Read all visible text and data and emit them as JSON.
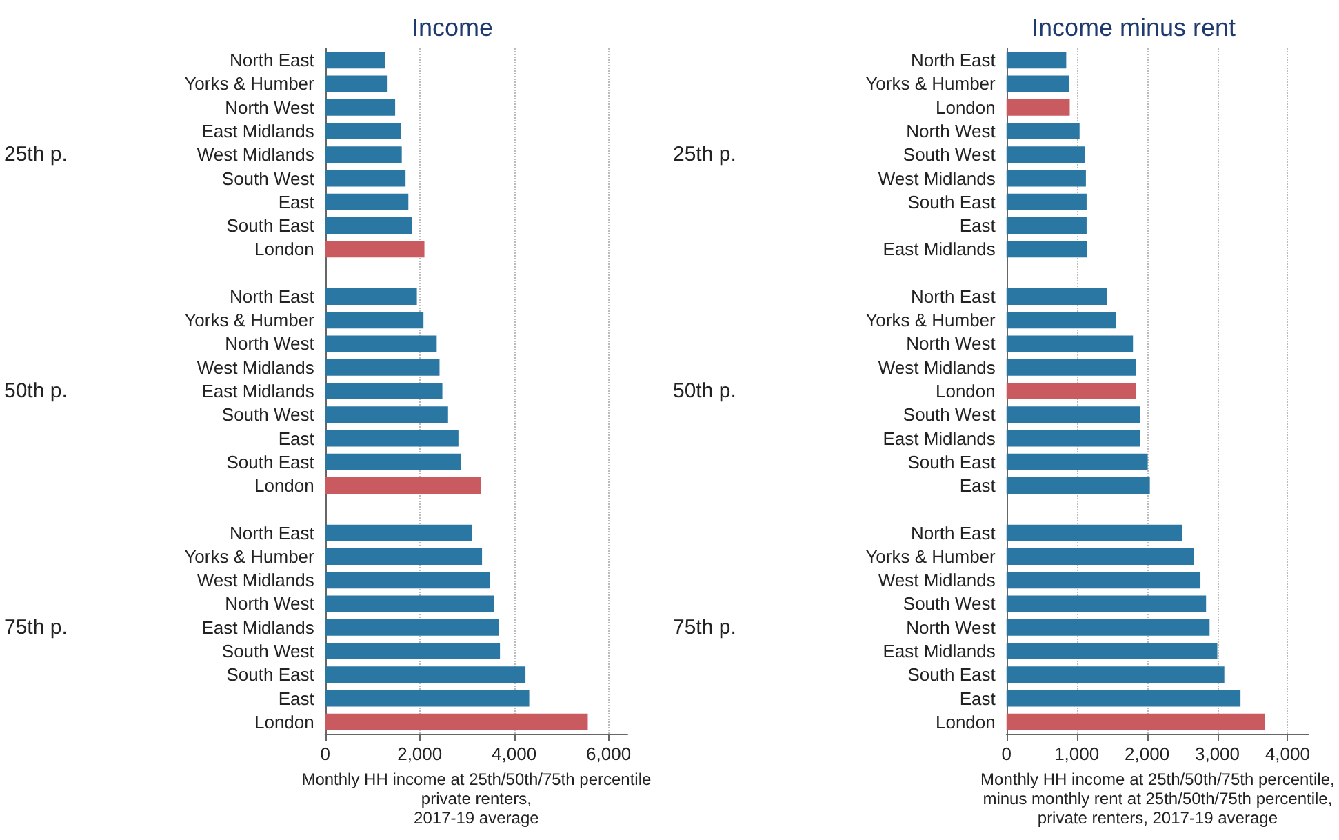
{
  "chart_data": [
    {
      "type": "bar",
      "orientation": "horizontal",
      "title": "Income",
      "xlabel": "Monthly HH income at 25th/50th/75th percentile\nprivate renters,\n2017-19 average",
      "categories": [
        "North East",
        "Yorks & Humber",
        "North West",
        "East Midlands",
        "West Midlands",
        "South West",
        "East",
        "South East",
        "London",
        null,
        "North East",
        "Yorks & Humber",
        "North West",
        "West Midlands",
        "East Midlands",
        "South West",
        "East",
        "South East",
        "London",
        null,
        "North East",
        "Yorks & Humber",
        "West Midlands",
        "North West",
        "East Midlands",
        "South West",
        "South East",
        "East",
        "London"
      ],
      "values": [
        1260,
        1320,
        1480,
        1600,
        1620,
        1700,
        1760,
        1840,
        2100,
        null,
        1940,
        2080,
        2360,
        2420,
        2480,
        2600,
        2820,
        2880,
        3300,
        null,
        3100,
        3320,
        3480,
        3580,
        3680,
        3700,
        4240,
        4320,
        5560
      ],
      "colors": [
        "#2a77a4",
        "#2a77a4",
        "#2a77a4",
        "#2a77a4",
        "#2a77a4",
        "#2a77a4",
        "#2a77a4",
        "#2a77a4",
        "#c95b60",
        null,
        "#2a77a4",
        "#2a77a4",
        "#2a77a4",
        "#2a77a4",
        "#2a77a4",
        "#2a77a4",
        "#2a77a4",
        "#2a77a4",
        "#c95b60",
        null,
        "#2a77a4",
        "#2a77a4",
        "#2a77a4",
        "#2a77a4",
        "#2a77a4",
        "#2a77a4",
        "#2a77a4",
        "#2a77a4",
        "#c95b60"
      ],
      "annotations": [
        "25th p.",
        "50th p.",
        "75th p."
      ],
      "xlim": [
        0,
        6400
      ],
      "xticks": [
        {
          "value": 0,
          "label": "0"
        },
        {
          "value": 2000,
          "label": "2,000"
        },
        {
          "value": 4000,
          "label": "4,000"
        },
        {
          "value": 6000,
          "label": "6,000"
        }
      ],
      "grid": "x"
    },
    {
      "type": "bar",
      "orientation": "horizontal",
      "title": "Income minus rent",
      "xlabel": "Monthly HH income at 25th/50th/75th percentile,\nminus monthly rent at 25th/50th/75th percentile,\nprivate renters, 2017-19 average",
      "categories": [
        "North East",
        "Yorks & Humber",
        "London",
        "North West",
        "South West",
        "West Midlands",
        "South East",
        "East",
        "East Midlands",
        null,
        "North East",
        "Yorks & Humber",
        "North West",
        "West Midlands",
        "London",
        "South West",
        "East Midlands",
        "South East",
        "East",
        null,
        "North East",
        "Yorks & Humber",
        "West Midlands",
        "South West",
        "North West",
        "East Midlands",
        "South East",
        "East",
        "London"
      ],
      "values": [
        850,
        890,
        900,
        1040,
        1120,
        1130,
        1140,
        1140,
        1150,
        null,
        1430,
        1560,
        1800,
        1840,
        1840,
        1900,
        1900,
        2010,
        2040,
        null,
        2500,
        2670,
        2760,
        2840,
        2890,
        3000,
        3100,
        3330,
        3680
      ],
      "colors": [
        "#2a77a4",
        "#2a77a4",
        "#c95b60",
        "#2a77a4",
        "#2a77a4",
        "#2a77a4",
        "#2a77a4",
        "#2a77a4",
        "#2a77a4",
        null,
        "#2a77a4",
        "#2a77a4",
        "#2a77a4",
        "#2a77a4",
        "#c95b60",
        "#2a77a4",
        "#2a77a4",
        "#2a77a4",
        "#2a77a4",
        null,
        "#2a77a4",
        "#2a77a4",
        "#2a77a4",
        "#2a77a4",
        "#2a77a4",
        "#2a77a4",
        "#2a77a4",
        "#2a77a4",
        "#c95b60"
      ],
      "annotations": [
        "25th p.",
        "50th p.",
        "75th p."
      ],
      "xlim": [
        0,
        4300
      ],
      "xticks": [
        {
          "value": 0,
          "label": "0"
        },
        {
          "value": 1000,
          "label": "1,000"
        },
        {
          "value": 2000,
          "label": "2,000"
        },
        {
          "value": 3000,
          "label": "3,000"
        },
        {
          "value": 4000,
          "label": "4,000"
        }
      ],
      "grid": "x"
    }
  ]
}
